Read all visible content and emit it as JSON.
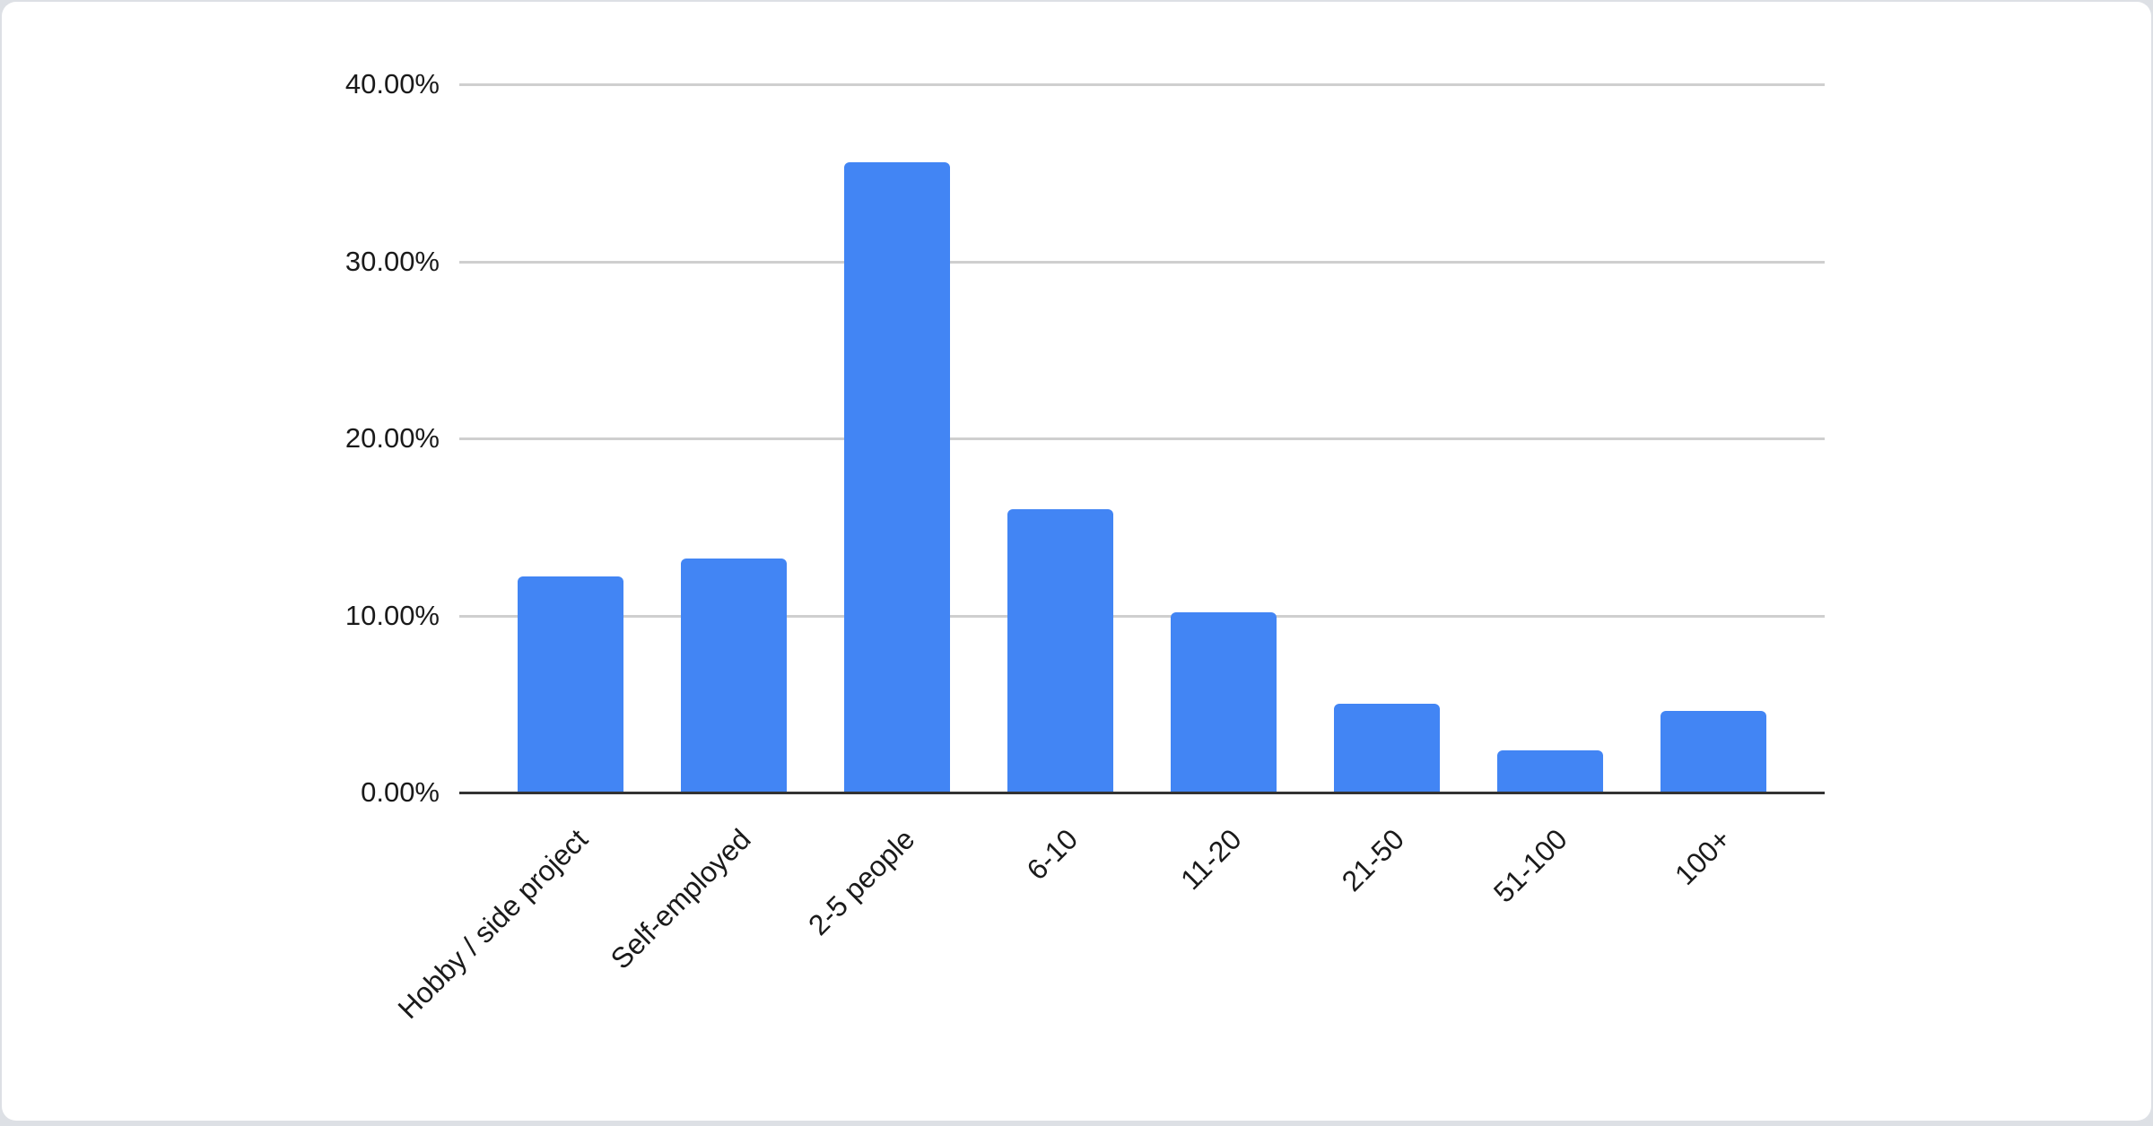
{
  "page": {
    "background_color": "#dde0e5",
    "card_color": "#ffffff"
  },
  "chart_data": {
    "type": "bar",
    "title": "",
    "categories": [
      "Hobby / side project",
      "Self-employed",
      "2-5 people",
      "6-10",
      "11-20",
      "21-50",
      "51-100",
      "100+"
    ],
    "values": [
      12.2,
      13.2,
      35.6,
      16.0,
      10.2,
      5.0,
      2.4,
      4.6
    ],
    "value_unit": "%",
    "series_name": "",
    "bar_color": "#4285f4",
    "xlabel": "",
    "ylabel": "",
    "ylim": [
      0,
      40
    ],
    "y_ticks": [
      {
        "value": 0,
        "label": "0.00%"
      },
      {
        "value": 10,
        "label": "10.00%"
      },
      {
        "value": 20,
        "label": "20.00%"
      },
      {
        "value": 30,
        "label": "30.00%"
      },
      {
        "value": 40,
        "label": "40.00%"
      }
    ],
    "grid": true,
    "gridline_color": "#cfcfcf",
    "axis_line_color": "#333333",
    "text_color": "#1a1a1a",
    "x_label_rotation_deg": -45,
    "legend_position": "none"
  }
}
